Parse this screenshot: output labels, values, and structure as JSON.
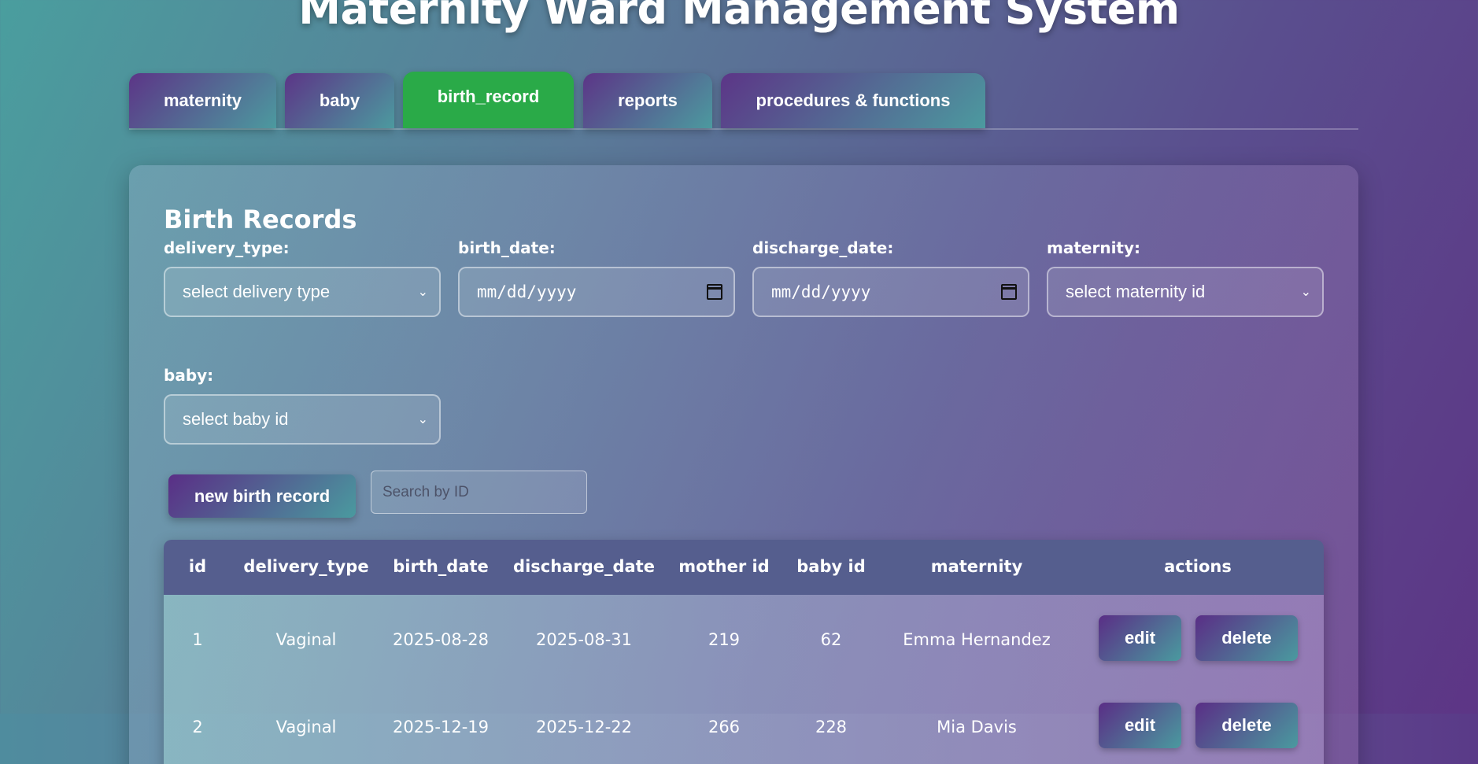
{
  "page_title": "Maternity Ward Management System",
  "tabs": [
    {
      "label": "maternity"
    },
    {
      "label": "baby"
    },
    {
      "label": "birth_record",
      "active": true
    },
    {
      "label": "reports"
    },
    {
      "label": "procedures & functions"
    }
  ],
  "panel": {
    "title": "Birth Records",
    "fields": {
      "delivery_type": {
        "label": "delivery_type:",
        "value": "select delivery type"
      },
      "birth_date": {
        "label": "birth_date:",
        "value": "mm/dd/yyyy"
      },
      "discharge_date": {
        "label": "discharge_date:",
        "value": "mm/dd/yyyy"
      },
      "maternity": {
        "label": "maternity:",
        "value": "select maternity id"
      },
      "baby": {
        "label": "baby:",
        "value": "select baby id"
      }
    },
    "new_button": "new birth record",
    "search_placeholder": "Search by ID"
  },
  "table": {
    "columns": [
      "id",
      "delivery_type",
      "birth_date",
      "discharge_date",
      "mother id",
      "baby id",
      "maternity",
      "actions"
    ],
    "rows": [
      {
        "id": "1",
        "delivery_type": "Vaginal",
        "birth_date": "2025-08-28",
        "discharge_date": "2025-08-31",
        "mother_id": "219",
        "baby_id": "62",
        "maternity": "Emma Hernandez"
      },
      {
        "id": "2",
        "delivery_type": "Vaginal",
        "birth_date": "2025-12-19",
        "discharge_date": "2025-12-22",
        "mother_id": "266",
        "baby_id": "228",
        "maternity": "Mia Davis"
      }
    ],
    "edit_label": "edit",
    "delete_label": "delete"
  },
  "colors": {
    "active_tab": "#2aaa48",
    "header_bg": "#555e8e"
  }
}
